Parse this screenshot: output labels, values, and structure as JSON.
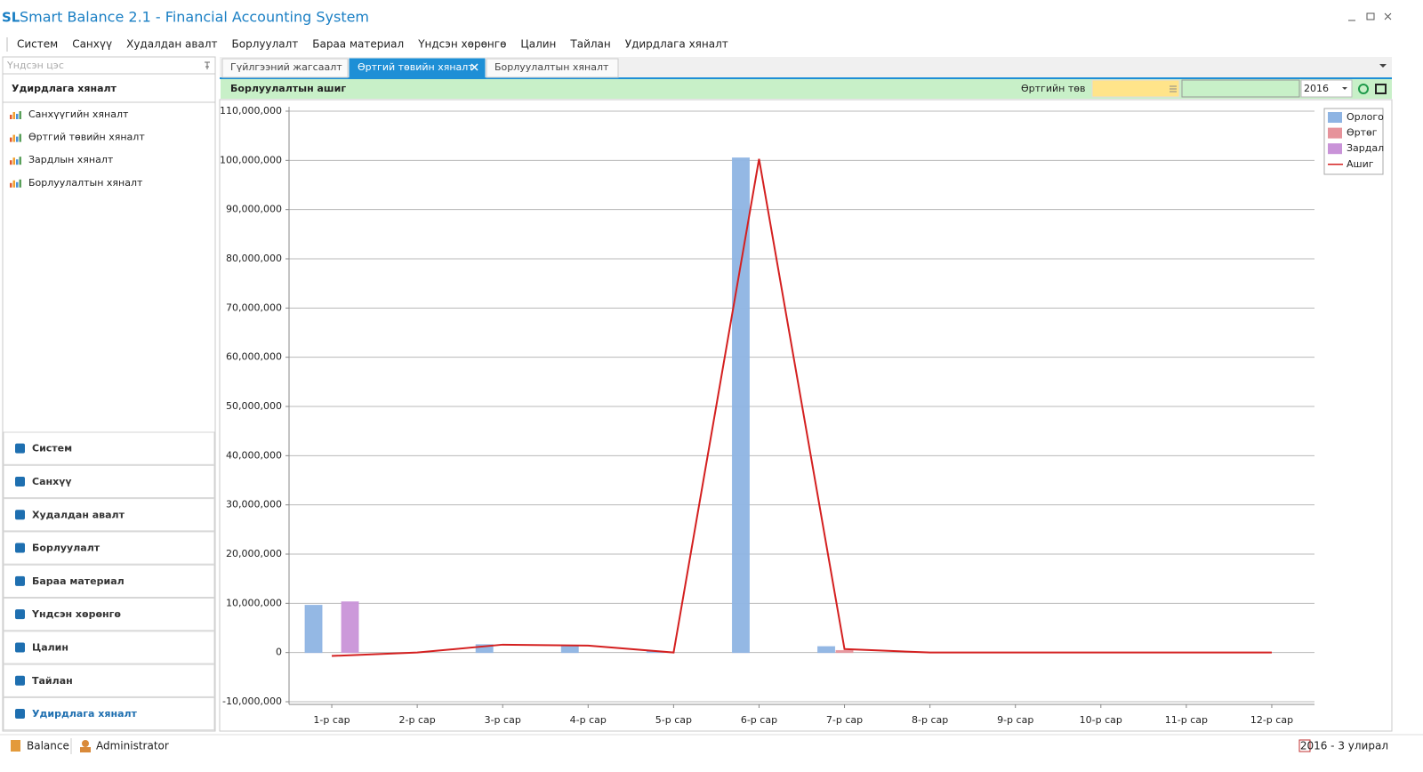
{
  "app": {
    "logo": "SL",
    "title": "Smart Balance 2.1 - Financial Accounting System",
    "menu": [
      "Систем",
      "Санхүү",
      "Худалдан авалт",
      "Борлуулалт",
      "Бараа материал",
      "Үндсэн хөрөнгө",
      "Цалин",
      "Тайлан",
      "Удирдлага хяналт"
    ],
    "sidebar": {
      "search_placeholder": "Үндсэн цэс",
      "section_title": "Удирдлага хяналт",
      "items": [
        "Санхүүгийн хяналт",
        "Өртгий төвийн хяналт",
        "Зардлын хяналт",
        "Борлуулалтын хяналт"
      ],
      "modules": [
        "Систем",
        "Санхүү",
        "Худалдан авалт",
        "Борлуулалт",
        "Бараа материал",
        "Үндсэн хөрөнгө",
        "Цалин",
        "Тайлан",
        "Удирдлага хяналт"
      ]
    },
    "tabs": [
      "Гүйлгээний жагсаалт",
      "Өртгий төвийн хяналт",
      "Борлуулалтын хяналт"
    ],
    "toolbar": {
      "title": "Борлуулалтын ашиг",
      "label": "Өртгийн төв",
      "year": "2016"
    },
    "status": {
      "database": "Balance",
      "user": "Administrator",
      "period": "2016 - 3 улирал"
    }
  },
  "chart_data": {
    "type": "bar",
    "categories": [
      "1-р сар",
      "2-р сар",
      "3-р сар",
      "4-р сар",
      "5-р сар",
      "6-р сар",
      "7-р сар",
      "8-р сар",
      "9-р сар",
      "10-р сар",
      "11-р сар",
      "12-р сар"
    ],
    "series": [
      {
        "name": "Орлого",
        "type": "bar",
        "color": "#8eb4e3",
        "values": [
          9600000,
          0,
          1600000,
          1400000,
          200000,
          100500000,
          1200000,
          0,
          0,
          0,
          0,
          0
        ]
      },
      {
        "name": "Өртөг",
        "type": "bar",
        "color": "#e6939b",
        "values": [
          0,
          0,
          0,
          0,
          0,
          0,
          400000,
          0,
          0,
          0,
          0,
          0
        ]
      },
      {
        "name": "Зардал",
        "type": "bar",
        "color": "#c993d8",
        "values": [
          10300000,
          0,
          0,
          0,
          0,
          0,
          0,
          0,
          0,
          0,
          0,
          0
        ]
      },
      {
        "name": "Ашиг",
        "type": "line",
        "color": "#d42020",
        "values": [
          -700000,
          0,
          1600000,
          1400000,
          0,
          100300000,
          700000,
          0,
          0,
          0,
          0,
          0
        ]
      }
    ],
    "ylim": [
      -10000000,
      110000000
    ],
    "yticks": [
      {
        "value": -10000000,
        "label": "-10,000,000"
      },
      0,
      {
        "value": 10000000,
        "label": "10,000,000"
      },
      {
        "value": 20000000,
        "label": "20,000,000"
      },
      {
        "value": 30000000,
        "label": "30,000,000"
      },
      {
        "value": 40000000,
        "label": "40,000,000"
      },
      {
        "value": 50000000,
        "label": "50,000,000"
      },
      {
        "value": 60000000,
        "label": "60,000,000"
      },
      {
        "value": 70000000,
        "label": "70,000,000"
      },
      {
        "value": 80000000,
        "label": "80,000,000"
      },
      {
        "value": 90000000,
        "label": "90,000,000"
      },
      {
        "value": 100000000,
        "label": "100,000,000"
      },
      {
        "value": 110000000,
        "label": "110,000,000"
      }
    ],
    "grid": true,
    "legend": "top-right"
  }
}
